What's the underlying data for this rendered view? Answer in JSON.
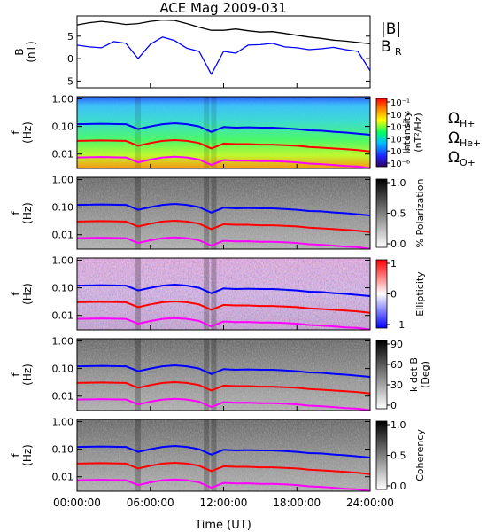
{
  "chart_data": {
    "type": "line",
    "title": "ACE Mag 2009-031",
    "xlabel": "Time (UT)",
    "x_ticks": [
      "00:00:00",
      "06:00:00",
      "12:00:00",
      "18:00:00",
      "24:00:00"
    ],
    "xlim_hours": [
      0,
      24
    ],
    "panels": [
      {
        "id": "mag",
        "type": "line",
        "ylabel": "B",
        "yunit": "(nT)",
        "ylim": [
          -6.5,
          9.5
        ],
        "y_ticks": [
          -5,
          0,
          5
        ],
        "legend": [
          "|B|",
          "B",
          "R"
        ],
        "series": [
          {
            "name": "|B|",
            "color": "#000000",
            "x": [
              0,
              1,
              2,
              3,
              4,
              5,
              6,
              7,
              8,
              9,
              10,
              11,
              12,
              13,
              14,
              15,
              16,
              17,
              18,
              19,
              20,
              21,
              22,
              23,
              24
            ],
            "y": [
              7.5,
              8.0,
              8.3,
              8.0,
              7.6,
              7.8,
              8.3,
              8.6,
              8.5,
              7.8,
              7.0,
              6.3,
              6.3,
              6.6,
              6.2,
              5.9,
              6.0,
              5.6,
              5.2,
              4.8,
              4.5,
              4.1,
              3.9,
              3.6,
              3.3
            ]
          },
          {
            "name": "B_R",
            "color": "#0000ff",
            "x": [
              0,
              1,
              2,
              3,
              4,
              5,
              6,
              7,
              8,
              9,
              10,
              11,
              12,
              13,
              14,
              15,
              16,
              17,
              18,
              19,
              20,
              21,
              22,
              23,
              24
            ],
            "y": [
              3.0,
              2.6,
              2.4,
              3.8,
              3.4,
              0.0,
              3.2,
              4.8,
              4.0,
              2.3,
              1.6,
              -3.5,
              1.6,
              1.2,
              3.0,
              3.1,
              3.4,
              2.6,
              2.4,
              2.0,
              2.2,
              2.5,
              2.0,
              1.6,
              -2.7
            ]
          }
        ]
      },
      {
        "id": "intensity",
        "type": "heatmap",
        "ylabel": "f",
        "yunit": "(Hz)",
        "cbar_label": "Intensity",
        "cbar_unit": "(nT²/Hz)",
        "cbar_ticks": [
          "10⁻¹",
          "10⁻²",
          "10⁻³",
          "10⁻⁴",
          "10⁻⁵",
          "10⁻⁶"
        ],
        "legend": [
          {
            "text": "Ω",
            "sub": "H+",
            "color": "#0000ff"
          },
          {
            "text": "Ω",
            "sub": "He+",
            "color": "#ff0000"
          },
          {
            "text": "Ω",
            "sub": "O+",
            "color": "#ff00ff"
          }
        ]
      },
      {
        "id": "polarization",
        "type": "heatmap",
        "ylabel": "f",
        "yunit": "(Hz)",
        "cbar_label": "% Polarization",
        "cbar_ticks": [
          "1.0",
          "0.5",
          "0.0"
        ]
      },
      {
        "id": "ellipticity",
        "type": "heatmap",
        "ylabel": "f",
        "yunit": "(Hz)",
        "cbar_label": "Ellipticity",
        "cbar_ticks": [
          "1",
          "0",
          "−1"
        ]
      },
      {
        "id": "kdotb",
        "type": "heatmap",
        "ylabel": "f",
        "yunit": "(Hz)",
        "cbar_label": "k dot B",
        "cbar_unit": "(Deg)",
        "cbar_ticks": [
          "90",
          "60",
          "30",
          "0"
        ]
      },
      {
        "id": "coherency",
        "type": "heatmap",
        "ylabel": "f",
        "yunit": "(Hz)",
        "cbar_label": "Coherency",
        "cbar_ticks": [
          "1.0",
          "0.5",
          "0.0"
        ]
      }
    ],
    "freq_ticks": [
      "1.00",
      "0.10",
      "0.01"
    ],
    "freq_ylim_hz": [
      0.003,
      1.2
    ],
    "gyrofrequency_curves": [
      {
        "name": "ΩH+",
        "color": "#0000ff",
        "x": [
          0,
          2,
          4,
          5,
          6,
          7,
          8,
          9,
          10,
          11,
          12,
          13,
          14,
          15,
          16,
          17,
          18,
          19,
          20,
          21,
          22,
          23,
          24
        ],
        "y": [
          0.12,
          0.125,
          0.12,
          0.08,
          0.1,
          0.12,
          0.13,
          0.12,
          0.1,
          0.063,
          0.095,
          0.09,
          0.093,
          0.09,
          0.09,
          0.085,
          0.08,
          0.072,
          0.07,
          0.064,
          0.06,
          0.055,
          0.05
        ]
      },
      {
        "name": "ΩHe+",
        "color": "#ff0000",
        "x": [
          0,
          2,
          4,
          5,
          6,
          7,
          8,
          9,
          10,
          11,
          12,
          13,
          14,
          15,
          16,
          17,
          18,
          19,
          20,
          21,
          22,
          23,
          24
        ],
        "y": [
          0.03,
          0.031,
          0.03,
          0.02,
          0.025,
          0.03,
          0.032,
          0.03,
          0.025,
          0.016,
          0.024,
          0.023,
          0.023,
          0.022,
          0.022,
          0.021,
          0.02,
          0.018,
          0.017,
          0.016,
          0.015,
          0.014,
          0.0125
        ]
      },
      {
        "name": "ΩO+",
        "color": "#ff00ff",
        "x": [
          0,
          2,
          4,
          5,
          6,
          7,
          8,
          9,
          10,
          11,
          12,
          13,
          14,
          15,
          16,
          17,
          18,
          19,
          20,
          21,
          22,
          23,
          24
        ],
        "y": [
          0.0075,
          0.0078,
          0.0075,
          0.005,
          0.0063,
          0.0075,
          0.008,
          0.0075,
          0.0063,
          0.004,
          0.006,
          0.0057,
          0.0058,
          0.0055,
          0.0055,
          0.0053,
          0.005,
          0.0045,
          0.0043,
          0.004,
          0.0037,
          0.0035,
          0.0031
        ]
      }
    ]
  }
}
